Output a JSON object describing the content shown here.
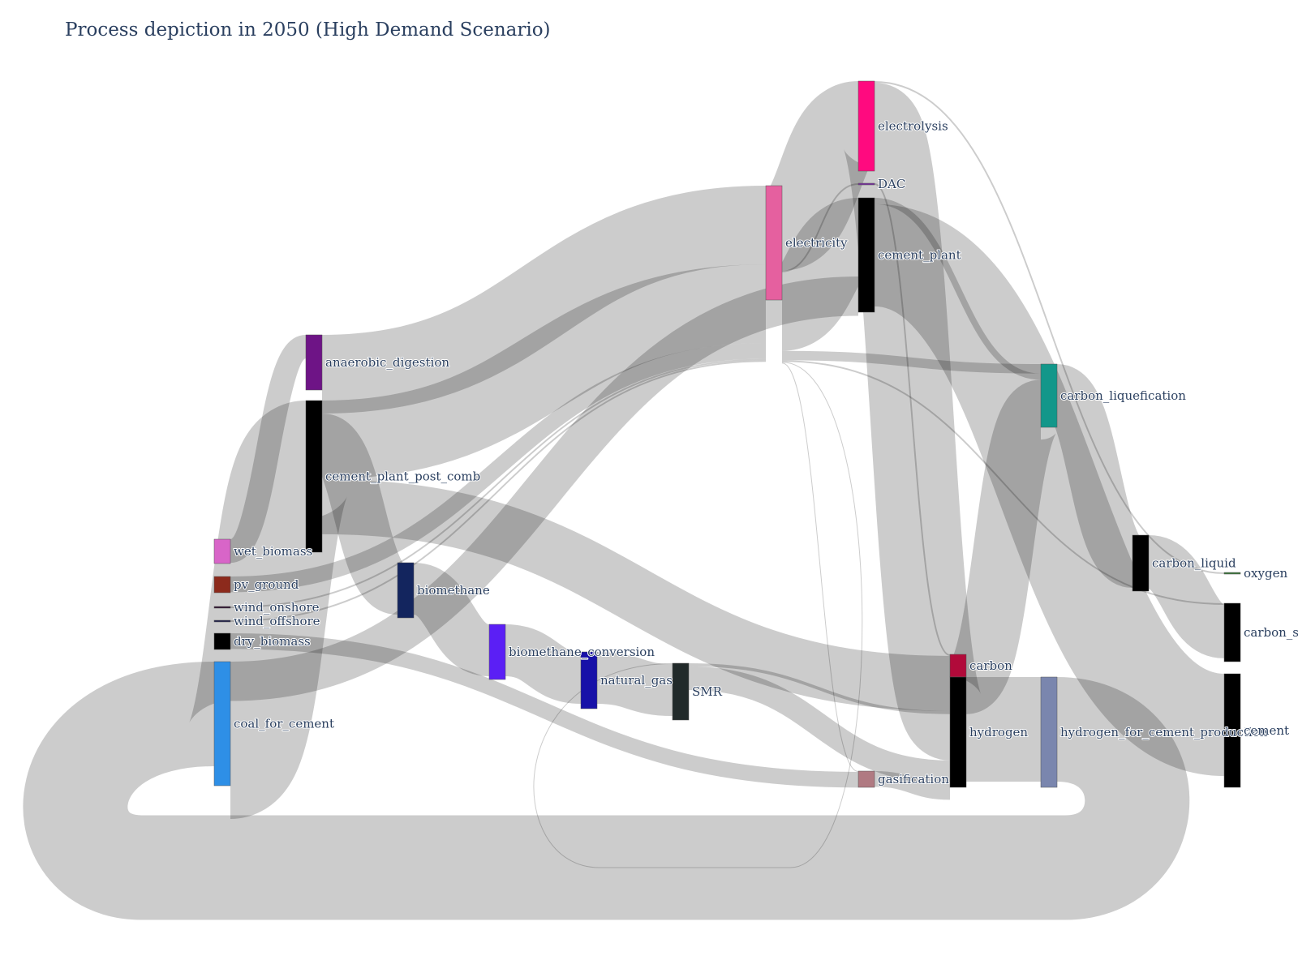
{
  "title": "Process depiction in 2050 (High Demand Scenario)",
  "nodes": [
    {
      "id": "electrolysis",
      "label": "electrolysis",
      "color": "#ff0a7f"
    },
    {
      "id": "DAC",
      "label": "DAC",
      "color": "#7a2fa0"
    },
    {
      "id": "cement_plant",
      "label": "cement_plant",
      "color": "#000000"
    },
    {
      "id": "electricity",
      "label": "electricity",
      "color": "#e5609f"
    },
    {
      "id": "anaerobic_digestion",
      "label": "anaerobic_digestion",
      "color": "#6e1486"
    },
    {
      "id": "cement_plant_post_comb",
      "label": "cement_plant_post_comb",
      "color": "#000000"
    },
    {
      "id": "carbon_liquefication",
      "label": "carbon_liquefication",
      "color": "#12978a"
    },
    {
      "id": "wet_biomass",
      "label": "wet_biomass",
      "color": "#d865c8"
    },
    {
      "id": "pv_ground",
      "label": "pv_ground",
      "color": "#8c2a1c"
    },
    {
      "id": "wind_onshore",
      "label": "wind_onshore",
      "color": "#2f1030"
    },
    {
      "id": "wind_offshore",
      "label": "wind_offshore",
      "color": "#1f1f4a"
    },
    {
      "id": "dry_biomass",
      "label": "dry_biomass",
      "color": "#000000"
    },
    {
      "id": "coal_for_cement",
      "label": "coal_for_cement",
      "color": "#2e8fe6"
    },
    {
      "id": "biomethane",
      "label": "biomethane",
      "color": "#13255e"
    },
    {
      "id": "biomethane_conversion",
      "label": "biomethane_conversion",
      "color": "#5b1ff5"
    },
    {
      "id": "natural_gas",
      "label": "natural_gas",
      "color": "#1711a8"
    },
    {
      "id": "SMR",
      "label": "SMR",
      "color": "#212a2a"
    },
    {
      "id": "carbon_liquid",
      "label": "carbon_liquid",
      "color": "#000000"
    },
    {
      "id": "oxygen",
      "label": "oxygen",
      "color": "#3d7a3d"
    },
    {
      "id": "carbon_storage",
      "label": "carbon_storage",
      "color": "#000000"
    },
    {
      "id": "carbon",
      "label": "carbon",
      "color": "#b10a3a"
    },
    {
      "id": "hydrogen",
      "label": "hydrogen",
      "color": "#000000"
    },
    {
      "id": "hydrogen_for_cement_prod",
      "label": "hydrogen_for_cement_production",
      "color": "#7a86ae"
    },
    {
      "id": "cement",
      "label": "cement",
      "color": "#000000"
    },
    {
      "id": "gasification",
      "label": "gasification",
      "color": "#b07a82"
    }
  ],
  "links": [
    {
      "source": "electricity",
      "target": "electrolysis",
      "value": 108
    },
    {
      "source": "electricity",
      "target": "cement_plant",
      "value": 100
    },
    {
      "source": "electricity",
      "target": "DAC",
      "value": 2
    },
    {
      "source": "electricity",
      "target": "carbon_liquefication",
      "value": 12
    },
    {
      "source": "electricity",
      "target": "carbon_storage",
      "value": 2
    },
    {
      "source": "electricity",
      "target": "SMR",
      "value": 1
    },
    {
      "source": "electricity",
      "target": "gasification",
      "value": 1
    },
    {
      "source": "electrolysis",
      "target": "hydrogen",
      "value": 106
    },
    {
      "source": "electrolysis",
      "target": "oxygen",
      "value": 2
    },
    {
      "source": "DAC",
      "target": "carbon",
      "value": 2
    },
    {
      "source": "cement_plant",
      "target": "carbon_liquefication",
      "value": 8
    },
    {
      "source": "cement_plant",
      "target": "cement",
      "value": 130
    },
    {
      "source": "carbon_liquefication",
      "target": "carbon_liquid",
      "value": 67
    },
    {
      "source": "carbon_liquid",
      "target": "carbon_storage",
      "value": 68
    },
    {
      "source": "wet_biomass",
      "target": "anaerobic_digestion",
      "value": 30
    },
    {
      "source": "anaerobic_digestion",
      "target": "biomethane",
      "value": 66
    },
    {
      "source": "anaerobic_digestion",
      "target": "electricity",
      "value": 100
    },
    {
      "source": "cement_plant_post_comb",
      "target": "electricity",
      "value": 100
    },
    {
      "source": "cement_plant_post_comb",
      "target": "carbon",
      "value": 70
    },
    {
      "source": "pv_ground",
      "target": "electricity",
      "value": 20
    },
    {
      "source": "wind_onshore",
      "target": "electricity",
      "value": 2
    },
    {
      "source": "wind_offshore",
      "target": "electricity",
      "value": 2
    },
    {
      "source": "dry_biomass",
      "target": "gasification",
      "value": 20
    },
    {
      "source": "coal_for_cement",
      "target": "cement_plant_post_comb",
      "value": 150
    },
    {
      "source": "coal_for_cement",
      "target": "cement_plant",
      "value": 50
    },
    {
      "source": "biomethane",
      "target": "biomethane_conversion",
      "value": 66
    },
    {
      "source": "biomethane_conversion",
      "target": "natural_gas",
      "value": 66
    },
    {
      "source": "natural_gas",
      "target": "SMR",
      "value": 66
    },
    {
      "source": "SMR",
      "target": "hydrogen",
      "value": 30
    },
    {
      "source": "SMR",
      "target": "carbon",
      "value": 4
    },
    {
      "source": "gasification",
      "target": "hydrogen",
      "value": 20
    },
    {
      "source": "carbon",
      "target": "carbon_liquefication",
      "value": 76
    },
    {
      "source": "hydrogen",
      "target": "hydrogen_for_cement_prod",
      "value": 133
    },
    {
      "source": "hydrogen_for_cement_prod",
      "target": "coal_for_cement",
      "value": 133
    }
  ]
}
